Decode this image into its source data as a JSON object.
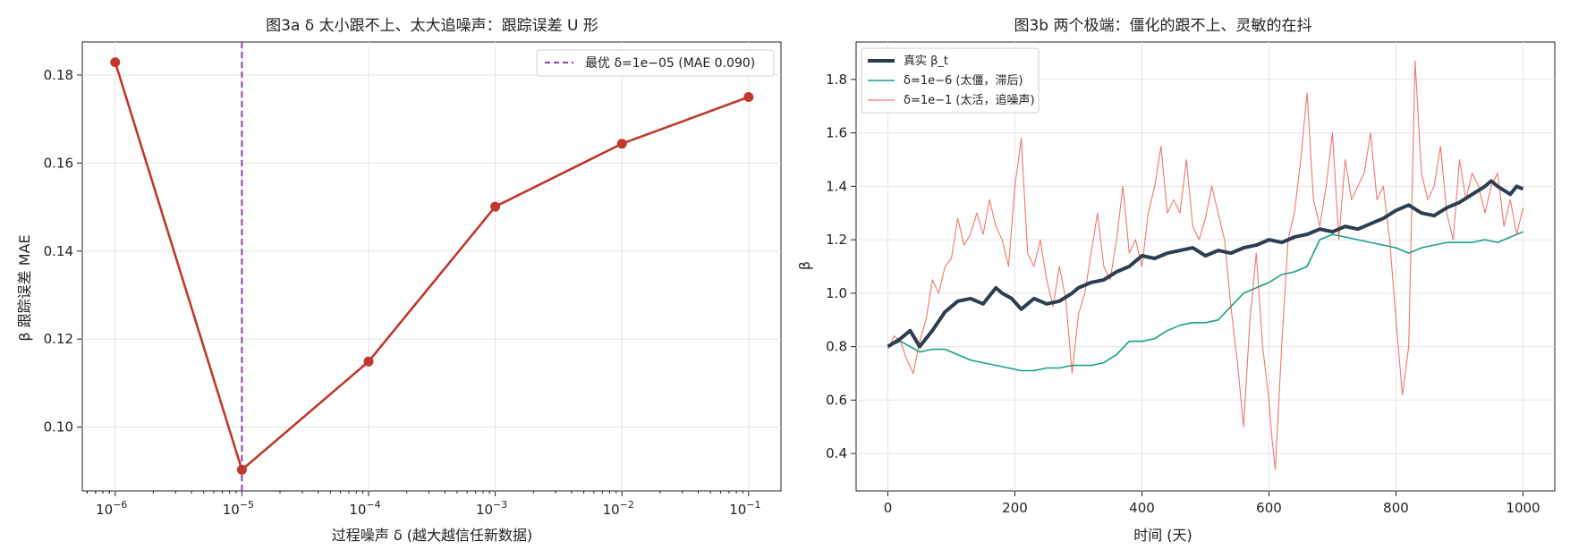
{
  "chart_data": [
    {
      "type": "line",
      "title": "图3a  δ 太小跟不上、太大追噪声：跟踪误差 U 形",
      "xlabel": "过程噪声 δ (越大越信任新数据)",
      "ylabel": "β 跟踪误差 MAE",
      "xscale": "log",
      "xlim": [
        5.5e-07,
        0.18
      ],
      "ylim": [
        0.0855,
        0.1875
      ],
      "x": [
        1e-06,
        1e-05,
        0.0001,
        0.001,
        0.01,
        0.1
      ],
      "y": [
        0.1829,
        0.0903,
        0.1149,
        0.1501,
        0.1644,
        0.175
      ],
      "x_tick_labels": [
        {
          "base": "10",
          "exp": "−6"
        },
        {
          "base": "10",
          "exp": "−5"
        },
        {
          "base": "10",
          "exp": "−4"
        },
        {
          "base": "10",
          "exp": "−3"
        },
        {
          "base": "10",
          "exp": "−2"
        },
        {
          "base": "10",
          "exp": "−1"
        }
      ],
      "y_ticks": [
        0.1,
        0.12,
        0.14,
        0.16,
        0.18
      ],
      "y_tick_labels": [
        "0.10",
        "0.12",
        "0.14",
        "0.16",
        "0.18"
      ],
      "vline": {
        "x": 1e-05,
        "label": "最优 δ=1e−05 (MAE 0.090)"
      },
      "grid": true,
      "legend_position": "top-right",
      "colors": {
        "line": "#c0392b",
        "vline": "#8e44ad"
      }
    },
    {
      "type": "line",
      "title": "图3b  两个极端：僵化的跟不上、灵敏的在抖",
      "xlabel": "时间 (天)",
      "ylabel": "β",
      "xlim": [
        -50,
        1050
      ],
      "ylim": [
        0.26,
        1.94
      ],
      "x_ticks": [
        0,
        200,
        400,
        600,
        800,
        1000
      ],
      "x_tick_labels": [
        "0",
        "200",
        "400",
        "600",
        "800",
        "1000"
      ],
      "y_ticks": [
        0.4,
        0.6,
        0.8,
        1.0,
        1.2,
        1.4,
        1.6,
        1.8
      ],
      "y_tick_labels": [
        "0.4",
        "0.6",
        "0.8",
        "1.0",
        "1.2",
        "1.4",
        "1.6",
        "1.8"
      ],
      "grid": true,
      "legend_position": "top-left",
      "series": [
        {
          "name": "真实 β_t",
          "color": "#2c3e50",
          "x": [
            0,
            20,
            35,
            50,
            70,
            90,
            110,
            130,
            150,
            170,
            180,
            195,
            210,
            230,
            250,
            270,
            290,
            300,
            320,
            340,
            360,
            380,
            400,
            420,
            440,
            460,
            480,
            500,
            520,
            540,
            560,
            580,
            600,
            620,
            640,
            660,
            680,
            700,
            720,
            740,
            760,
            780,
            800,
            820,
            840,
            860,
            880,
            900,
            920,
            940,
            950,
            960,
            980,
            990,
            1000
          ],
          "y": [
            0.8,
            0.83,
            0.86,
            0.8,
            0.86,
            0.93,
            0.97,
            0.98,
            0.96,
            1.02,
            1.0,
            0.98,
            0.94,
            0.98,
            0.96,
            0.97,
            1.0,
            1.02,
            1.04,
            1.05,
            1.08,
            1.1,
            1.14,
            1.13,
            1.15,
            1.16,
            1.17,
            1.14,
            1.16,
            1.15,
            1.17,
            1.18,
            1.2,
            1.19,
            1.21,
            1.22,
            1.24,
            1.23,
            1.25,
            1.24,
            1.26,
            1.28,
            1.31,
            1.33,
            1.3,
            1.29,
            1.32,
            1.34,
            1.37,
            1.4,
            1.42,
            1.4,
            1.37,
            1.4,
            1.39
          ]
        },
        {
          "name": "δ=1e−6 (太僵，滞后)",
          "color": "#16a085",
          "x": [
            0,
            20,
            35,
            50,
            70,
            90,
            110,
            130,
            150,
            170,
            190,
            210,
            230,
            250,
            270,
            290,
            300,
            320,
            340,
            360,
            380,
            400,
            420,
            440,
            460,
            480,
            500,
            520,
            540,
            560,
            580,
            600,
            620,
            640,
            660,
            680,
            700,
            720,
            740,
            760,
            780,
            800,
            820,
            840,
            860,
            880,
            900,
            920,
            940,
            960,
            980,
            1000
          ],
          "y": [
            0.8,
            0.82,
            0.8,
            0.78,
            0.79,
            0.79,
            0.77,
            0.75,
            0.74,
            0.73,
            0.72,
            0.71,
            0.71,
            0.72,
            0.72,
            0.73,
            0.73,
            0.73,
            0.74,
            0.77,
            0.82,
            0.82,
            0.83,
            0.86,
            0.88,
            0.89,
            0.89,
            0.9,
            0.95,
            1.0,
            1.02,
            1.04,
            1.07,
            1.08,
            1.1,
            1.2,
            1.22,
            1.21,
            1.2,
            1.19,
            1.18,
            1.17,
            1.15,
            1.17,
            1.18,
            1.19,
            1.19,
            1.19,
            1.2,
            1.19,
            1.21,
            1.23
          ]
        },
        {
          "name": "δ=1e−1 (太活，追噪声)",
          "color": "#e74c3c",
          "x": [
            0,
            10,
            20,
            30,
            40,
            50,
            60,
            70,
            80,
            90,
            100,
            110,
            120,
            130,
            140,
            150,
            160,
            170,
            180,
            190,
            200,
            210,
            220,
            230,
            240,
            250,
            260,
            270,
            280,
            290,
            300,
            310,
            320,
            330,
            340,
            350,
            360,
            370,
            380,
            390,
            400,
            410,
            420,
            430,
            440,
            450,
            460,
            470,
            480,
            490,
            500,
            510,
            520,
            530,
            540,
            550,
            560,
            570,
            580,
            590,
            600,
            605,
            610,
            620,
            630,
            640,
            650,
            660,
            670,
            680,
            690,
            700,
            710,
            720,
            730,
            740,
            750,
            760,
            770,
            780,
            790,
            800,
            810,
            820,
            830,
            840,
            850,
            860,
            870,
            880,
            890,
            900,
            910,
            920,
            930,
            940,
            950,
            960,
            970,
            980,
            990,
            1000
          ],
          "y": [
            0.79,
            0.84,
            0.82,
            0.75,
            0.7,
            0.82,
            0.9,
            1.05,
            1.0,
            1.1,
            1.13,
            1.28,
            1.18,
            1.22,
            1.3,
            1.22,
            1.35,
            1.25,
            1.2,
            1.1,
            1.4,
            1.58,
            1.15,
            1.1,
            1.2,
            1.05,
            0.95,
            1.1,
            0.98,
            0.7,
            0.92,
            1.0,
            1.15,
            1.3,
            1.1,
            1.05,
            1.2,
            1.4,
            1.15,
            1.2,
            1.1,
            1.3,
            1.4,
            1.55,
            1.3,
            1.35,
            1.3,
            1.5,
            1.25,
            1.2,
            1.28,
            1.4,
            1.3,
            1.2,
            0.95,
            0.75,
            0.5,
            0.9,
            1.15,
            0.8,
            0.6,
            0.45,
            0.34,
            0.8,
            1.2,
            1.3,
            1.5,
            1.75,
            1.35,
            1.25,
            1.4,
            1.6,
            1.2,
            1.5,
            1.35,
            1.4,
            1.45,
            1.6,
            1.35,
            1.4,
            1.2,
            0.9,
            0.62,
            0.8,
            1.87,
            1.45,
            1.35,
            1.4,
            1.55,
            1.3,
            1.2,
            1.5,
            1.35,
            1.45,
            1.4,
            1.3,
            1.4,
            1.45,
            1.25,
            1.35,
            1.22,
            1.32
          ]
        }
      ]
    }
  ]
}
